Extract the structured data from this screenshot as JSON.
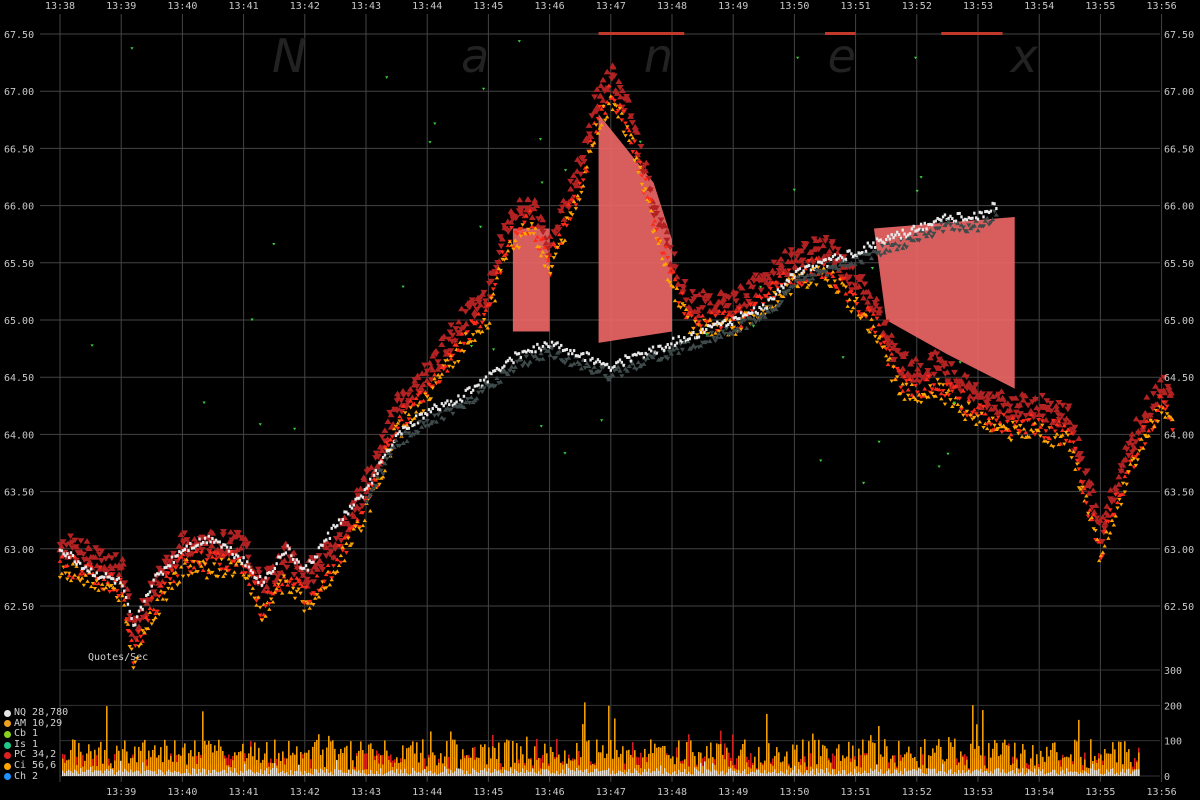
{
  "watermark": "N a n e x",
  "volume_label": "Quotes/Sec",
  "legend": [
    {
      "code": "NQ",
      "text": "28,780",
      "color": "#e6e6e6"
    },
    {
      "code": "AM",
      "text": "10,29",
      "color": "#f0a020"
    },
    {
      "code": "Cb",
      "text": "1",
      "color": "#8ad11e"
    },
    {
      "code": "Is",
      "text": "1",
      "color": "#1ec98a"
    },
    {
      "code": "PC",
      "text": "34,2",
      "color": "#e02020"
    },
    {
      "code": "Ci",
      "text": "56,6",
      "color": "#ffa500"
    },
    {
      "code": "Ch",
      "text": "2",
      "color": "#1e90ff"
    }
  ],
  "chart_data": {
    "type": "scatter",
    "x_ticks": [
      "13:38",
      "13:39",
      "13:40",
      "13:41",
      "13:42",
      "13:43",
      "13:44",
      "13:45",
      "13:46",
      "13:47",
      "13:48",
      "13:49",
      "13:50",
      "13:51",
      "13:52",
      "13:53",
      "13:54",
      "13:55",
      "13:56"
    ],
    "bottom_x_ticks": [
      "13:39",
      "13:40",
      "13:41",
      "13:42",
      "13:43",
      "13:44",
      "13:45",
      "13:46",
      "13:47",
      "13:48",
      "13:49",
      "13:50",
      "13:51",
      "13:52",
      "13:53",
      "13:54",
      "13:55",
      "13:56"
    ],
    "y_ticks": [
      "67.50",
      "67.00",
      "66.50",
      "66.00",
      "65.50",
      "65.00",
      "64.50",
      "64.00",
      "63.50",
      "63.00",
      "62.50"
    ],
    "ylim": [
      62.0,
      67.6
    ],
    "volume_y_ticks": [
      "300",
      "200",
      "100",
      "0"
    ],
    "volume_ylim": [
      0,
      300
    ],
    "price_path": [
      [
        "13:38.0",
        63.0
      ],
      [
        "13:38.5",
        62.8
      ],
      [
        "13:39.0",
        62.7
      ],
      [
        "13:39.2",
        62.3
      ],
      [
        "13:39.5",
        62.7
      ],
      [
        "13:40.0",
        63.0
      ],
      [
        "13:40.5",
        63.1
      ],
      [
        "13:41.0",
        62.9
      ],
      [
        "13:41.3",
        62.7
      ],
      [
        "13:41.7",
        63.0
      ],
      [
        "13:42.0",
        62.8
      ],
      [
        "13:42.5",
        63.2
      ],
      [
        "13:43.0",
        63.5
      ],
      [
        "13:43.5",
        64.0
      ],
      [
        "13:44.0",
        64.2
      ],
      [
        "13:44.5",
        64.3
      ],
      [
        "13:45.0",
        64.5
      ],
      [
        "13:45.5",
        64.7
      ],
      [
        "13:46.0",
        64.8
      ],
      [
        "13:46.5",
        64.7
      ],
      [
        "13:47.0",
        64.6
      ],
      [
        "13:47.5",
        64.7
      ],
      [
        "13:48.0",
        64.8
      ],
      [
        "13:48.5",
        64.9
      ],
      [
        "13:49.0",
        65.0
      ],
      [
        "13:49.5",
        65.1
      ],
      [
        "13:50.0",
        65.4
      ],
      [
        "13:50.5",
        65.5
      ],
      [
        "13:51.0",
        65.6
      ],
      [
        "13:51.5",
        65.7
      ],
      [
        "13:52.0",
        65.8
      ],
      [
        "13:52.5",
        65.9
      ],
      [
        "13:53.0",
        65.9
      ],
      [
        "13:53.3",
        66.0
      ]
    ],
    "upper_path": [
      [
        "13:38.0",
        63.0
      ],
      [
        "13:39.0",
        62.8
      ],
      [
        "13:39.2",
        62.2
      ],
      [
        "13:39.5",
        62.6
      ],
      [
        "13:40.0",
        63.0
      ],
      [
        "13:41.0",
        63.0
      ],
      [
        "13:41.3",
        62.6
      ],
      [
        "13:41.7",
        62.9
      ],
      [
        "13:42.0",
        62.7
      ],
      [
        "13:42.5",
        63.0
      ],
      [
        "13:43.0",
        63.5
      ],
      [
        "13:43.5",
        64.2
      ],
      [
        "13:44.0",
        64.5
      ],
      [
        "13:44.5",
        64.9
      ],
      [
        "13:45.0",
        65.2
      ],
      [
        "13:45.3",
        65.8
      ],
      [
        "13:45.7",
        66.0
      ],
      [
        "13:46.0",
        65.6
      ],
      [
        "13:46.5",
        66.3
      ],
      [
        "13:46.8",
        66.9
      ],
      [
        "13:47.0",
        67.1
      ],
      [
        "13:47.3",
        66.8
      ],
      [
        "13:47.7",
        66.0
      ],
      [
        "13:48.0",
        65.5
      ],
      [
        "13:48.3",
        65.1
      ],
      [
        "13:49.0",
        65.1
      ],
      [
        "13:49.5",
        65.3
      ],
      [
        "13:50.0",
        65.5
      ],
      [
        "13:50.5",
        65.6
      ],
      [
        "13:51.0",
        65.3
      ],
      [
        "13:51.3",
        65.1
      ],
      [
        "13:51.7",
        64.6
      ],
      [
        "13:52.0",
        64.5
      ],
      [
        "13:52.3",
        64.6
      ],
      [
        "13:53.0",
        64.3
      ],
      [
        "13:53.5",
        64.2
      ],
      [
        "13:54.0",
        64.2
      ],
      [
        "13:54.5",
        64.1
      ],
      [
        "13:54.8",
        63.5
      ],
      [
        "13:55.0",
        63.1
      ],
      [
        "13:55.3",
        63.6
      ],
      [
        "13:55.7",
        64.1
      ],
      [
        "13:56.0",
        64.4
      ],
      [
        "13:56.2",
        64.2
      ]
    ],
    "volume_series": [
      {
        "name": "PC",
        "color": "#e02020",
        "mean": 35
      },
      {
        "name": "Ci",
        "color": "#ffa500",
        "mean": 55
      },
      {
        "name": "NQ",
        "color": "#e6e6e6",
        "mean": 12
      }
    ]
  }
}
